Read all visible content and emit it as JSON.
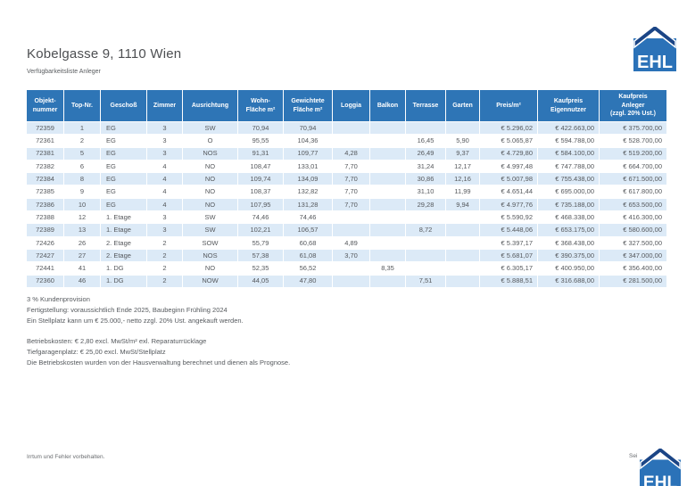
{
  "page": {
    "title": "Kobelgasse 9, 1110 Wien",
    "subtitle": "Verfügbarkeitsliste Anleger"
  },
  "logo": {
    "text": "EHL"
  },
  "table": {
    "columns": [
      "Objekt-\nnummer",
      "Top-Nr.",
      "Geschoß",
      "Zimmer",
      "Ausrichtung",
      "Wohn-\nFläche m²",
      "Gewichtete\nFläche m²",
      "Loggia",
      "Balkon",
      "Terrasse",
      "Garten",
      "Preis/m²",
      "Kaufpreis\nEigennutzer",
      "Kaufpreis\nAnleger\n(zzgl. 20% Ust.)"
    ],
    "rows": [
      [
        "72359",
        "1",
        "EG",
        "3",
        "SW",
        "70,94",
        "70,94",
        "",
        "",
        "",
        "",
        "€ 5.296,02",
        "€ 422.663,00",
        "€ 375.700,00"
      ],
      [
        "72361",
        "2",
        "EG",
        "3",
        "O",
        "95,55",
        "104,36",
        "",
        "",
        "16,45",
        "5,90",
        "€ 5.065,87",
        "€ 594.788,00",
        "€ 528.700,00"
      ],
      [
        "72381",
        "5",
        "EG",
        "3",
        "NOS",
        "91,31",
        "109,77",
        "4,28",
        "",
        "26,49",
        "9,37",
        "€ 4.729,80",
        "€ 584.100,00",
        "€ 519.200,00"
      ],
      [
        "72382",
        "6",
        "EG",
        "4",
        "NO",
        "108,47",
        "133,01",
        "7,70",
        "",
        "31,24",
        "12,17",
        "€ 4.997,48",
        "€ 747.788,00",
        "€ 664.700,00"
      ],
      [
        "72384",
        "8",
        "EG",
        "4",
        "NO",
        "109,74",
        "134,09",
        "7,70",
        "",
        "30,86",
        "12,16",
        "€ 5.007,98",
        "€ 755.438,00",
        "€ 671.500,00"
      ],
      [
        "72385",
        "9",
        "EG",
        "4",
        "NO",
        "108,37",
        "132,82",
        "7,70",
        "",
        "31,10",
        "11,99",
        "€ 4.651,44",
        "€ 695.000,00",
        "€ 617.800,00"
      ],
      [
        "72386",
        "10",
        "EG",
        "4",
        "NO",
        "107,95",
        "131,28",
        "7,70",
        "",
        "29,28",
        "9,94",
        "€ 4.977,76",
        "€ 735.188,00",
        "€ 653.500,00"
      ],
      [
        "72388",
        "12",
        "1. Etage",
        "3",
        "SW",
        "74,46",
        "74,46",
        "",
        "",
        "",
        "",
        "€ 5.590,92",
        "€ 468.338,00",
        "€ 416.300,00"
      ],
      [
        "72389",
        "13",
        "1. Etage",
        "3",
        "SW",
        "102,21",
        "106,57",
        "",
        "",
        "8,72",
        "",
        "€ 5.448,06",
        "€ 653.175,00",
        "€ 580.600,00"
      ],
      [
        "72426",
        "26",
        "2. Etage",
        "2",
        "SOW",
        "55,79",
        "60,68",
        "4,89",
        "",
        "",
        "",
        "€ 5.397,17",
        "€ 368.438,00",
        "€ 327.500,00"
      ],
      [
        "72427",
        "27",
        "2. Etage",
        "2",
        "NOS",
        "57,38",
        "61,08",
        "3,70",
        "",
        "",
        "",
        "€ 5.681,07",
        "€ 390.375,00",
        "€ 347.000,00"
      ],
      [
        "72441",
        "41",
        "1. DG",
        "2",
        "NO",
        "52,35",
        "56,52",
        "",
        "8,35",
        "",
        "",
        "€ 6.305,17",
        "€ 400.950,00",
        "€ 356.400,00"
      ],
      [
        "72360",
        "46",
        "1. DG",
        "2",
        "NOW",
        "44,05",
        "47,80",
        "",
        "",
        "7,51",
        "",
        "€ 5.888,51",
        "€ 316.688,00",
        "€ 281.500,00"
      ]
    ]
  },
  "notes": {
    "block1": [
      "3 % Kundenprovision",
      "Fertigstellung: voraussichtlich Ende 2025, Baubeginn Frühling 2024",
      "Ein Stellplatz kann um € 25.000,- netto zzgl. 20% Ust. angekauft werden."
    ],
    "block2": [
      "Betriebskosten: € 2,80 excl. MwSt/m² exl. Reparaturrücklage",
      "Tiefgaragenplatz: € 25,00 excl. MwSt/Stellplatz",
      "Die Betriebskosten wurden von der Hausverwaltung berechnet und dienen als Prognose."
    ]
  },
  "footer": {
    "disclaimer": "Irrtum und Fehler vorbehalten.",
    "page_label": "Sei"
  },
  "colors": {
    "header_blue": "#2E75B6",
    "row_alt": "#DCEAF7",
    "logo_blue": "#2B72B8",
    "logo_roof": "#1B4586"
  }
}
